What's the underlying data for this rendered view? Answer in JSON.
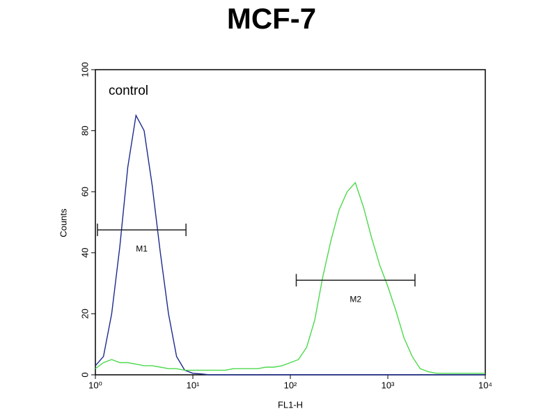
{
  "chart_data": {
    "type": "histogram-line",
    "title": "MCF-7",
    "annotation": "control",
    "xlabel": "FL1-H",
    "ylabel": "Counts",
    "xscale": "log",
    "xlim": [
      1,
      10000
    ],
    "ylim": [
      0,
      100
    ],
    "xticks": [
      {
        "value": 1,
        "label": "10⁰"
      },
      {
        "value": 10,
        "label": "10¹"
      },
      {
        "value": 100,
        "label": "10²"
      },
      {
        "value": 1000,
        "label": "10³"
      },
      {
        "value": 10000,
        "label": "10⁴"
      }
    ],
    "yticks": [
      0,
      20,
      40,
      60,
      80,
      100
    ],
    "x": [
      1,
      1.21,
      1.47,
      1.78,
      2.15,
      2.61,
      3.16,
      3.83,
      4.64,
      5.62,
      6.81,
      8.25,
      10,
      12.1,
      14.7,
      17.8,
      21.5,
      26.1,
      31.6,
      38.3,
      46.4,
      56.2,
      68.1,
      82.5,
      100,
      121,
      147,
      178,
      215,
      261,
      316,
      383,
      464,
      562,
      681,
      825,
      1000,
      1210,
      1470,
      1780,
      2150,
      2610,
      3160,
      3830,
      4640,
      5620,
      6810,
      8250,
      10000
    ],
    "series": [
      {
        "name": "control",
        "color": "#1c2a8c",
        "values": [
          3,
          6,
          20,
          42,
          68,
          85,
          80,
          62,
          40,
          20,
          6,
          1.5,
          0.5,
          0.3,
          0,
          0,
          0,
          0,
          0,
          0,
          0,
          0,
          0,
          0,
          0,
          0,
          0,
          0,
          0,
          0,
          0,
          0,
          0,
          0,
          0,
          0,
          0,
          0,
          0,
          0,
          0,
          0,
          0,
          0,
          0,
          0,
          0,
          0,
          0
        ]
      },
      {
        "name": "MCF-7",
        "color": "#4cd94c",
        "values": [
          2,
          4,
          5,
          4,
          4,
          3.5,
          3,
          3,
          2.5,
          2,
          2,
          1.5,
          1.5,
          1.5,
          1.5,
          1.5,
          1.5,
          2,
          2,
          2,
          2,
          2.5,
          2.5,
          3,
          4,
          5,
          9,
          18,
          32,
          44,
          54,
          60,
          63,
          55,
          45,
          36,
          29,
          21,
          12,
          6,
          2,
          1,
          0.5,
          0.5,
          0.5,
          0.5,
          0.5,
          0.5,
          0.5
        ]
      }
    ],
    "markers": [
      {
        "label": "M1",
        "range": [
          1.05,
          8.5
        ],
        "y": 47.5
      },
      {
        "label": "M2",
        "range": [
          115,
          1900
        ],
        "y": 31
      }
    ]
  }
}
